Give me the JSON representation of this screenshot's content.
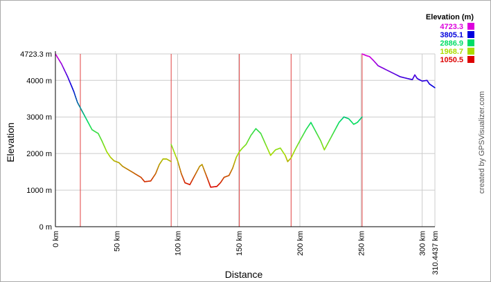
{
  "chart_data": {
    "type": "line",
    "title": "",
    "xlabel": "Distance",
    "ylabel": "Elevation",
    "xlim": [
      0,
      310.4437
    ],
    "ylim": [
      0,
      4723.3
    ],
    "x_ticks": [
      {
        "value": 0,
        "label": "0 km"
      },
      {
        "value": 50,
        "label": "50 km"
      },
      {
        "value": 100,
        "label": "100 km"
      },
      {
        "value": 150,
        "label": "150 km"
      },
      {
        "value": 200,
        "label": "200 km"
      },
      {
        "value": 250,
        "label": "250 km"
      },
      {
        "value": 300,
        "label": "300 km"
      },
      {
        "value": 310.4437,
        "label": "310.4437 km"
      }
    ],
    "y_ticks": [
      {
        "value": 0,
        "label": "0 m"
      },
      {
        "value": 1000,
        "label": "1000 m"
      },
      {
        "value": 2000,
        "label": "2000 m"
      },
      {
        "value": 3000,
        "label": "3000 m"
      },
      {
        "value": 4000,
        "label": "4000 m"
      },
      {
        "value": 4723.3,
        "label": "4723.3 m"
      }
    ],
    "grid": true,
    "segment_breaks_km": [
      20.4,
      94.7,
      150.5,
      192.8,
      250.9
    ],
    "legend": {
      "title": "Elevation (m)",
      "placement": "top-right",
      "entries": [
        {
          "label": "4723.3",
          "color": "#dd00dd"
        },
        {
          "label": "3805.1",
          "color": "#0000dd"
        },
        {
          "label": "2886.9",
          "color": "#00dd66"
        },
        {
          "label": "1968.7",
          "color": "#aadd00"
        },
        {
          "label": "1050.5",
          "color": "#dd0000"
        }
      ]
    },
    "color_scale": {
      "stops": [
        {
          "value": 1050.5,
          "color": "#dd0000"
        },
        {
          "value": 1968.7,
          "color": "#aadd00"
        },
        {
          "value": 2886.9,
          "color": "#00dd66"
        },
        {
          "value": 3805.1,
          "color": "#0000dd"
        },
        {
          "value": 4723.3,
          "color": "#dd00dd"
        }
      ]
    },
    "credit": "created by GPSVisualizer.com",
    "series": [
      {
        "points": [
          [
            0,
            4723
          ],
          [
            5,
            4450
          ],
          [
            10,
            4100
          ],
          [
            15,
            3700
          ],
          [
            18,
            3400
          ],
          [
            22,
            3150
          ],
          [
            26,
            2900
          ],
          [
            30,
            2650
          ],
          [
            35,
            2550
          ],
          [
            38,
            2350
          ],
          [
            40,
            2200
          ],
          [
            42,
            2050
          ],
          [
            45,
            1900
          ],
          [
            48,
            1800
          ],
          [
            52,
            1750
          ],
          [
            55,
            1650
          ],
          [
            60,
            1550
          ],
          [
            65,
            1450
          ],
          [
            70,
            1350
          ],
          [
            73,
            1230
          ],
          [
            78,
            1250
          ],
          [
            82,
            1450
          ],
          [
            85,
            1700
          ],
          [
            88,
            1850
          ],
          [
            91,
            1850
          ],
          [
            94.7,
            1780
          ]
        ]
      },
      {
        "points": [
          [
            94.7,
            2250
          ],
          [
            100,
            1800
          ],
          [
            103,
            1450
          ],
          [
            106,
            1200
          ],
          [
            110,
            1150
          ],
          [
            114,
            1400
          ],
          [
            118,
            1650
          ],
          [
            120,
            1700
          ],
          [
            124,
            1350
          ],
          [
            127,
            1080
          ],
          [
            132,
            1100
          ],
          [
            135,
            1200
          ],
          [
            138,
            1350
          ],
          [
            142,
            1400
          ],
          [
            145,
            1600
          ],
          [
            148,
            1900
          ],
          [
            150.5,
            2050
          ]
        ]
      },
      {
        "points": [
          [
            150.5,
            2050
          ],
          [
            153,
            2150
          ],
          [
            156,
            2250
          ],
          [
            160,
            2500
          ],
          [
            164,
            2680
          ],
          [
            168,
            2550
          ],
          [
            172,
            2250
          ],
          [
            176,
            1950
          ],
          [
            180,
            2100
          ],
          [
            184,
            2150
          ],
          [
            188,
            1950
          ],
          [
            190,
            1780
          ],
          [
            192.8,
            1880
          ]
        ]
      },
      {
        "points": [
          [
            192.8,
            1880
          ],
          [
            196,
            2100
          ],
          [
            200,
            2350
          ],
          [
            205,
            2650
          ],
          [
            209,
            2850
          ],
          [
            213,
            2600
          ],
          [
            217,
            2350
          ],
          [
            220,
            2100
          ],
          [
            224,
            2350
          ],
          [
            228,
            2600
          ],
          [
            232,
            2850
          ],
          [
            236,
            3000
          ],
          [
            240,
            2950
          ],
          [
            244,
            2800
          ],
          [
            247,
            2850
          ],
          [
            250.9,
            3000
          ]
        ]
      },
      {
        "points": [
          [
            250.9,
            4723
          ],
          [
            254,
            4680
          ],
          [
            257,
            4650
          ],
          [
            260,
            4550
          ],
          [
            264,
            4400
          ],
          [
            270,
            4300
          ],
          [
            276,
            4200
          ],
          [
            282,
            4100
          ],
          [
            288,
            4050
          ],
          [
            292,
            4020
          ],
          [
            294,
            4150
          ],
          [
            296,
            4050
          ],
          [
            300,
            3980
          ],
          [
            304,
            4000
          ],
          [
            306,
            3900
          ],
          [
            310.4,
            3800
          ]
        ]
      }
    ]
  }
}
